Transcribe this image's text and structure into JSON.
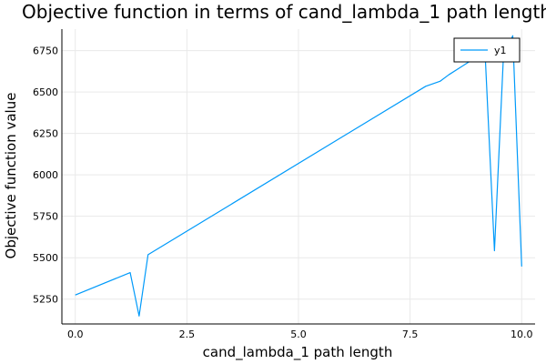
{
  "chart_data": {
    "type": "line",
    "title": "Objective function in terms of cand_lambda_1 path length",
    "xlabel": "cand_lambda_1 path length",
    "ylabel": "Objective function value",
    "xlim": [
      -0.3,
      10.3
    ],
    "ylim": [
      5100,
      6880
    ],
    "xticks": [
      0.0,
      2.5,
      5.0,
      7.5,
      10.0
    ],
    "xtick_labels": [
      "0.0",
      "2.5",
      "5.0",
      "7.5",
      "10.0"
    ],
    "yticks": [
      5250,
      5500,
      5750,
      6000,
      6250,
      6500,
      6750
    ],
    "ytick_labels": [
      "5250",
      "5500",
      "5750",
      "6000",
      "6250",
      "6500",
      "6750"
    ],
    "grid": true,
    "legend_position": "top-right",
    "series": [
      {
        "name": "y1",
        "color": "#009AFA",
        "x": [
          0.0,
          1.23,
          1.43,
          1.63,
          7.85,
          8.17,
          8.37,
          8.98,
          9.18,
          9.39,
          9.59,
          9.8,
          10.0
        ],
        "y": [
          5275,
          5410,
          5148,
          5518,
          6535,
          6565,
          6605,
          6710,
          6735,
          5542,
          6710,
          6840,
          5447
        ]
      }
    ]
  }
}
